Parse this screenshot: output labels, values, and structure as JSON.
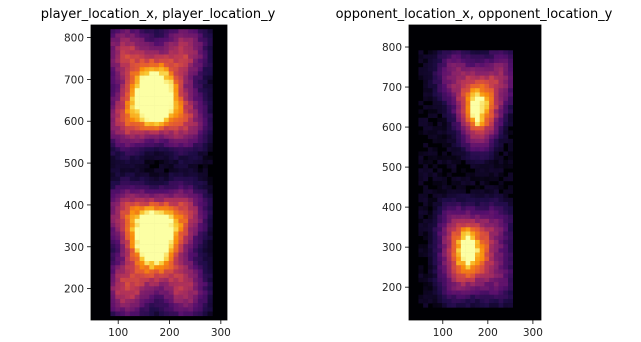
{
  "chart_data": [
    {
      "type": "heatmap",
      "title": "player_location_x, player_location_y",
      "xlabel": "",
      "ylabel": "",
      "xlim": [
        47,
        312
      ],
      "ylim": [
        125,
        830
      ],
      "xticks": [
        100,
        200,
        300
      ],
      "yticks": [
        200,
        300,
        400,
        500,
        600,
        700,
        800
      ],
      "colormap": "inferno",
      "grid": false,
      "density_x_range": [
        85,
        280
      ],
      "density_y_range": [
        140,
        820
      ],
      "blobs": [
        {
          "x": 115,
          "y": 765,
          "w": 0.5
        },
        {
          "x": 230,
          "y": 765,
          "w": 0.5
        },
        {
          "x": 115,
          "y": 600,
          "w": 0.5
        },
        {
          "x": 230,
          "y": 600,
          "w": 0.5
        },
        {
          "x": 165,
          "y": 655,
          "w": 0.75
        },
        {
          "x": 175,
          "y": 655,
          "w": 0.75
        },
        {
          "x": 170,
          "y": 705,
          "w": 0.3
        },
        {
          "x": 115,
          "y": 380,
          "w": 0.5
        },
        {
          "x": 230,
          "y": 380,
          "w": 0.5
        },
        {
          "x": 115,
          "y": 200,
          "w": 0.55
        },
        {
          "x": 230,
          "y": 200,
          "w": 0.5
        },
        {
          "x": 165,
          "y": 330,
          "w": 0.75
        },
        {
          "x": 178,
          "y": 330,
          "w": 0.75
        },
        {
          "x": 170,
          "y": 270,
          "w": 0.4
        }
      ],
      "hotspots": [
        {
          "x": 163,
          "y": 640,
          "w": 1.0
        },
        {
          "x": 178,
          "y": 630,
          "w": 0.9
        },
        {
          "x": 160,
          "y": 330,
          "w": 1.0
        },
        {
          "x": 178,
          "y": 335,
          "w": 0.95
        }
      ]
    },
    {
      "type": "heatmap",
      "title": "opponent_location_x, opponent_location_y",
      "xlabel": "",
      "ylabel": "",
      "xlim": [
        25,
        318
      ],
      "ylim": [
        118,
        855
      ],
      "xticks": [
        100,
        200,
        300
      ],
      "yticks": [
        200,
        300,
        400,
        500,
        600,
        700,
        800
      ],
      "colormap": "inferno",
      "grid": false,
      "density_x_range": [
        50,
        260
      ],
      "density_y_range": [
        150,
        790
      ],
      "blobs": [
        {
          "x": 180,
          "y": 660,
          "w": 0.85
        },
        {
          "x": 125,
          "y": 730,
          "w": 0.35
        },
        {
          "x": 230,
          "y": 730,
          "w": 0.35
        },
        {
          "x": 180,
          "y": 590,
          "w": 0.3
        },
        {
          "x": 160,
          "y": 290,
          "w": 0.9
        },
        {
          "x": 125,
          "y": 350,
          "w": 0.3
        },
        {
          "x": 215,
          "y": 350,
          "w": 0.3
        },
        {
          "x": 130,
          "y": 225,
          "w": 0.3
        },
        {
          "x": 220,
          "y": 225,
          "w": 0.3
        }
      ],
      "hotspots": [
        {
          "x": 175,
          "y": 645,
          "w": 1.0
        },
        {
          "x": 155,
          "y": 300,
          "w": 1.0
        }
      ]
    }
  ]
}
